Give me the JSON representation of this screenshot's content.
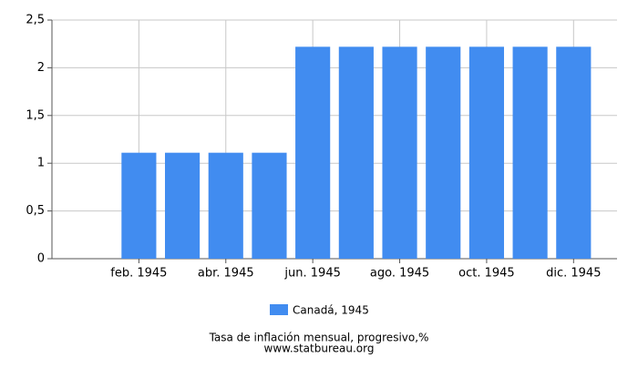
{
  "chart_data": {
    "type": "bar",
    "categories": [
      null,
      "feb. 1945",
      null,
      "abr. 1945",
      null,
      "jun. 1945",
      null,
      "ago. 1945",
      null,
      "oct. 1945",
      null,
      "dic. 1945"
    ],
    "series": [
      {
        "name": "Canadá, 1945",
        "color": "#418cf0",
        "values": [
          null,
          1.11,
          1.11,
          1.11,
          1.11,
          2.22,
          2.22,
          2.22,
          2.22,
          2.22,
          2.22,
          2.22
        ]
      }
    ],
    "ylim": [
      0,
      2.5
    ],
    "yticks": [
      0,
      {
        "value": 0.5,
        "label": "0,5"
      },
      1,
      {
        "value": 1.5,
        "label": "1,5"
      },
      2,
      {
        "value": 2.5,
        "label": "2,5"
      }
    ],
    "grid": true,
    "x_label": "Tasa de inflación mensual, progresivo,%",
    "source": "www.statbureau.org"
  }
}
